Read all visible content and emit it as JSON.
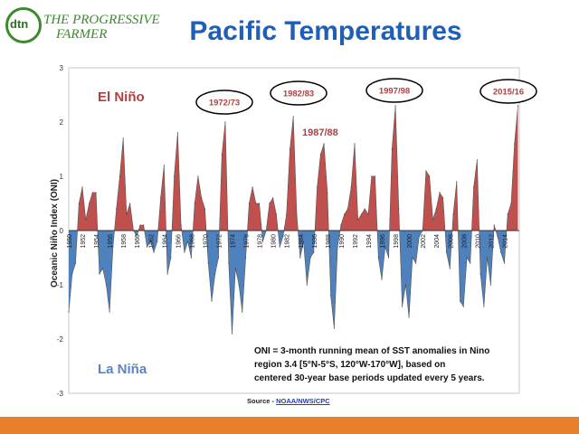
{
  "logo": {
    "mark": "dtn",
    "line1": "THE PROGRESSIVE",
    "line2": "FARMER"
  },
  "title": "Pacific Temperatures",
  "source": {
    "label": "Source - ",
    "link": "NOAA/NWS/CPC"
  },
  "colors": {
    "positive": "#c0504d",
    "negative": "#4f81bd",
    "title": "#1f5fb8",
    "elnino": "#b04040",
    "lanina": "#5b84c0",
    "bar": "#e8802a"
  },
  "chart_data": {
    "type": "area",
    "title": "",
    "xlabel": "",
    "ylabel": "Oceanic Niño Index (ONI)",
    "ylim": [
      -3,
      3
    ],
    "yticks": [
      3,
      2,
      1,
      0,
      -1,
      -2,
      -3
    ],
    "xticks": [
      "1950",
      "1952",
      "1954",
      "1956",
      "1958",
      "1960",
      "1962",
      "1964",
      "1966",
      "1968",
      "1970",
      "1972",
      "1974",
      "1976",
      "1978",
      "1980",
      "1982",
      "1984",
      "1986",
      "1988",
      "1990",
      "1992",
      "1994",
      "1996",
      "1998",
      "2000",
      "2002",
      "2004",
      "2006",
      "2008",
      "2010",
      "2012",
      "2014"
    ],
    "labels": {
      "elnino": "El Niño",
      "lanina": "La Niña",
      "extra": "1987/88"
    },
    "callouts": [
      "1972/73",
      "1982/83",
      "1997/98",
      "2015/16"
    ],
    "note": [
      "ONI = 3-month running mean of SST anomalies in Nino",
      "region 3.4 [5°N-5°S, 120°W-170°W], based on",
      "centered 30-year base periods updated every 5 years."
    ],
    "series": [
      {
        "name": "ONI",
        "x": [
          1950.0,
          1950.5,
          1951.0,
          1951.5,
          1952.0,
          1952.5,
          1953.0,
          1953.5,
          1954.0,
          1954.5,
          1955.0,
          1955.5,
          1956.0,
          1956.5,
          1957.0,
          1957.5,
          1958.0,
          1958.5,
          1959.0,
          1959.5,
          1960.0,
          1960.5,
          1961.0,
          1961.5,
          1962.0,
          1962.5,
          1963.0,
          1963.5,
          1964.0,
          1964.5,
          1965.0,
          1965.5,
          1966.0,
          1966.5,
          1967.0,
          1967.5,
          1968.0,
          1968.5,
          1969.0,
          1969.5,
          1970.0,
          1970.5,
          1971.0,
          1971.5,
          1972.0,
          1972.5,
          1973.0,
          1973.5,
          1974.0,
          1974.5,
          1975.0,
          1975.5,
          1976.0,
          1976.5,
          1977.0,
          1977.5,
          1978.0,
          1978.5,
          1979.0,
          1979.5,
          1980.0,
          1980.5,
          1981.0,
          1981.5,
          1982.0,
          1982.5,
          1983.0,
          1983.5,
          1984.0,
          1984.5,
          1985.0,
          1985.5,
          1986.0,
          1986.5,
          1987.0,
          1987.5,
          1988.0,
          1988.5,
          1989.0,
          1989.5,
          1990.0,
          1990.5,
          1991.0,
          1991.5,
          1992.0,
          1992.5,
          1993.0,
          1993.5,
          1994.0,
          1994.5,
          1995.0,
          1995.5,
          1996.0,
          1996.5,
          1997.0,
          1997.5,
          1998.0,
          1998.5,
          1999.0,
          1999.5,
          2000.0,
          2000.5,
          2001.0,
          2001.5,
          2002.0,
          2002.5,
          2003.0,
          2003.5,
          2004.0,
          2004.5,
          2005.0,
          2005.5,
          2006.0,
          2006.5,
          2007.0,
          2007.5,
          2008.0,
          2008.5,
          2009.0,
          2009.5,
          2010.0,
          2010.5,
          2011.0,
          2011.5,
          2012.0,
          2012.5,
          2013.0,
          2013.5,
          2014.0,
          2014.5,
          2015.0,
          2015.5,
          2016.0
        ],
        "values": [
          -1.5,
          -0.8,
          -0.6,
          0.5,
          0.8,
          0.2,
          0.5,
          0.7,
          0.7,
          -0.8,
          -0.7,
          -1.0,
          -1.5,
          -0.3,
          0.4,
          1.0,
          1.7,
          0.3,
          0.5,
          0.0,
          -0.1,
          0.1,
          0.1,
          -0.3,
          -0.2,
          -0.4,
          -0.2,
          0.6,
          1.2,
          -0.8,
          -0.5,
          1.0,
          1.8,
          0.1,
          -0.4,
          -0.2,
          -0.5,
          0.5,
          1.0,
          0.6,
          0.4,
          -0.6,
          -1.3,
          -0.8,
          -0.5,
          1.4,
          2.0,
          -0.6,
          -1.9,
          -0.7,
          -1.0,
          -1.5,
          -0.5,
          0.5,
          0.8,
          0.5,
          0.5,
          -0.2,
          0.0,
          0.5,
          0.6,
          0.3,
          -0.3,
          -0.1,
          0.3,
          1.5,
          2.1,
          0.3,
          -0.5,
          -0.2,
          -1.0,
          -0.5,
          -0.4,
          0.8,
          1.4,
          1.6,
          0.7,
          -1.2,
          -1.8,
          -0.3,
          0.1,
          0.3,
          0.4,
          0.8,
          1.6,
          0.2,
          0.3,
          0.4,
          0.3,
          1.0,
          1.0,
          -0.5,
          -0.9,
          -0.3,
          -0.5,
          1.5,
          2.3,
          0.4,
          -1.4,
          -1.0,
          -1.6,
          -0.5,
          -0.6,
          -0.1,
          0.0,
          1.1,
          1.0,
          0.2,
          0.4,
          0.7,
          0.6,
          -0.4,
          -0.7,
          0.3,
          0.9,
          -1.3,
          -1.4,
          -0.5,
          -0.6,
          0.8,
          1.3,
          -0.8,
          -1.4,
          -0.5,
          -1.0,
          0.1,
          -0.1,
          -0.4,
          -0.6,
          0.3,
          0.5,
          1.6,
          2.3
        ]
      }
    ]
  }
}
